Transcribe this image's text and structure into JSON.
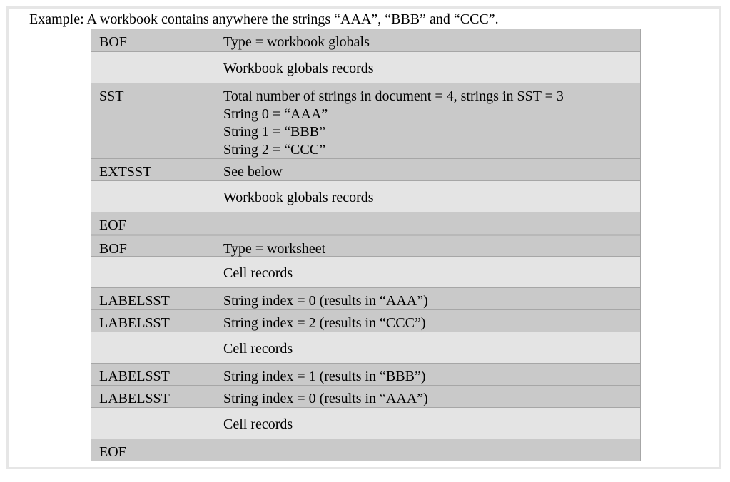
{
  "caption": "Example: A workbook contains anywhere the strings “AAA”, “BBB” and “CCC”.",
  "rows": [
    {
      "record": "BOF",
      "lines": [
        "Type = workbook globals"
      ]
    },
    {
      "record": "",
      "lines": [
        "Workbook globals records"
      ]
    },
    {
      "record": "SST",
      "lines": [
        "Total number of strings in document = 4, strings in SST = 3",
        "String 0 = “AAA”",
        "String 1 = “BBB”",
        "String 2 = “CCC”"
      ]
    },
    {
      "record": "EXTSST",
      "lines": [
        "See below"
      ]
    },
    {
      "record": "",
      "lines": [
        "Workbook globals records"
      ]
    },
    {
      "record": "EOF",
      "lines": [
        ""
      ]
    },
    {
      "record": "BOF",
      "lines": [
        "Type = worksheet"
      ]
    },
    {
      "record": "",
      "lines": [
        "Cell records"
      ]
    },
    {
      "record": "LABELSST",
      "lines": [
        "String index = 0 (results in “AAA”)"
      ]
    },
    {
      "record": "LABELSST",
      "lines": [
        "String index = 2 (results in “CCC”)"
      ]
    },
    {
      "record": "",
      "lines": [
        "Cell records"
      ]
    },
    {
      "record": "LABELSST",
      "lines": [
        "String index = 1 (results in “BBB”)"
      ]
    },
    {
      "record": "LABELSST",
      "lines": [
        "String index = 0 (results in “AAA”)"
      ]
    },
    {
      "record": "",
      "lines": [
        "Cell records"
      ]
    },
    {
      "record": "EOF",
      "lines": [
        ""
      ]
    }
  ]
}
